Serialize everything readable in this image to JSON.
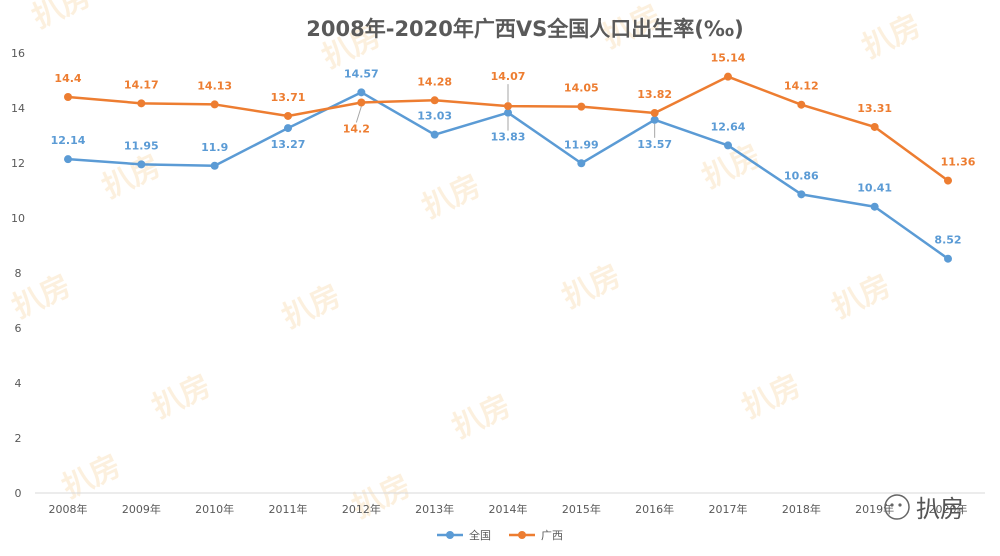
{
  "chart_data": {
    "type": "line",
    "title": "2008年-2020年广西VS全国人口出生率(‰)",
    "categories": [
      "2008年",
      "2009年",
      "2010年",
      "2011年",
      "2012年",
      "2013年",
      "2014年",
      "2015年",
      "2016年",
      "2017年",
      "2018年",
      "2019年",
      "2020年"
    ],
    "series": [
      {
        "name": "全国",
        "color": "#5b9bd5",
        "values": [
          12.14,
          11.95,
          11.9,
          13.27,
          14.57,
          13.03,
          13.83,
          11.99,
          13.57,
          12.64,
          10.86,
          10.41,
          8.52
        ]
      },
      {
        "name": "广西",
        "color": "#ed7d31",
        "values": [
          14.4,
          14.17,
          14.13,
          13.71,
          14.2,
          14.28,
          14.07,
          14.05,
          13.82,
          15.14,
          14.12,
          13.31,
          11.36
        ]
      }
    ],
    "y_ticks": [
      0,
      2,
      4,
      6,
      8,
      10,
      12,
      14,
      16
    ],
    "ylim": [
      0,
      16
    ],
    "legend_position": "bottom",
    "grid": false
  },
  "watermark": {
    "text": "扒房",
    "color": "#f5c98a"
  },
  "brand": {
    "icon": "wechat-icon",
    "text": "扒房"
  }
}
